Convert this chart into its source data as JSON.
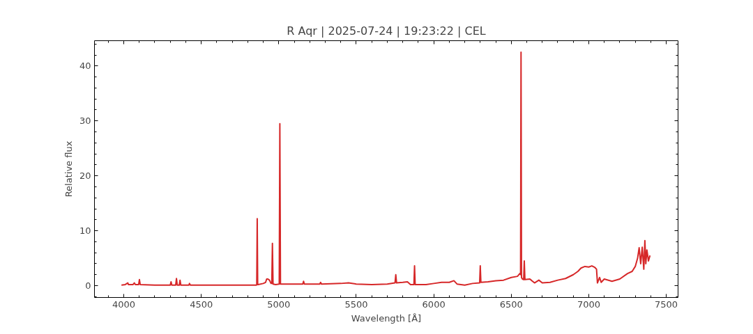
{
  "chart_data": {
    "type": "line",
    "title": "R Aqr | 2025-07-24 | 19:23:22 | CEL",
    "xlabel": "Wavelength [Å]",
    "ylabel": "Relative flux",
    "xlim": [
      3811,
      7576
    ],
    "ylim": [
      -2.15,
      44.6
    ],
    "xticks": [
      4000,
      4500,
      5000,
      5500,
      6000,
      6500,
      7000,
      7500
    ],
    "yticks": [
      0,
      10,
      20,
      30,
      40
    ],
    "grid": false,
    "series": [
      {
        "color": "#d62728",
        "x": [
          3985,
          4010,
          4026,
          4030,
          4060,
          4068,
          4075,
          4096,
          4101,
          4106,
          4200,
          4300,
          4305,
          4310,
          4335,
          4340,
          4345,
          4358,
          4363,
          4368,
          4420,
          4424,
          4430,
          4600,
          4800,
          4855,
          4858,
          4861,
          4864,
          4867,
          4900,
          4915,
          4922,
          4930,
          4940,
          4950,
          4955,
          4959,
          4963,
          4980,
          5003,
          5007,
          5011,
          5030,
          5100,
          5155,
          5160,
          5165,
          5265,
          5270,
          5275,
          5400,
          5450,
          5500,
          5600,
          5700,
          5750,
          5755,
          5760,
          5800,
          5830,
          5850,
          5872,
          5876,
          5880,
          5950,
          6000,
          6050,
          6100,
          6130,
          6150,
          6200,
          6250,
          6296,
          6300,
          6304,
          6350,
          6400,
          6450,
          6500,
          6540,
          6555,
          6560,
          6563,
          6566,
          6572,
          6580,
          6584,
          6588,
          6620,
          6650,
          6678,
          6700,
          6750,
          6800,
          6850,
          6900,
          6930,
          6950,
          6975,
          7000,
          7020,
          7040,
          7050,
          7056,
          7070,
          7080,
          7100,
          7150,
          7200,
          7250,
          7280,
          7300,
          7315,
          7325,
          7335,
          7345,
          7355,
          7362,
          7368,
          7375,
          7385,
          7395
        ],
        "values": [
          0.1,
          0.2,
          0.5,
          0.2,
          0.2,
          0.5,
          0.2,
          0.2,
          1.1,
          0.2,
          0.1,
          0.1,
          0.7,
          0.1,
          0.1,
          1.3,
          0.1,
          0.1,
          1.0,
          0.1,
          0.1,
          0.4,
          0.1,
          0.1,
          0.1,
          0.1,
          0.2,
          12.2,
          0.2,
          0.2,
          0.4,
          0.6,
          1.2,
          1.2,
          1.0,
          0.4,
          0.4,
          7.7,
          0.3,
          0.2,
          0.3,
          29.5,
          0.3,
          0.3,
          0.3,
          0.3,
          0.8,
          0.3,
          0.3,
          0.6,
          0.3,
          0.4,
          0.5,
          0.3,
          0.2,
          0.3,
          0.5,
          2.0,
          0.5,
          0.6,
          0.7,
          0.2,
          0.2,
          3.6,
          0.2,
          0.2,
          0.4,
          0.6,
          0.6,
          0.9,
          0.3,
          0.1,
          0.4,
          0.5,
          3.6,
          0.6,
          0.7,
          0.9,
          1.0,
          1.5,
          1.7,
          2.2,
          2.0,
          42.5,
          1.5,
          1.2,
          1.1,
          4.5,
          1.1,
          1.2,
          0.5,
          1.0,
          0.5,
          0.6,
          1.0,
          1.3,
          2.0,
          2.6,
          3.2,
          3.5,
          3.4,
          3.6,
          3.3,
          3.0,
          0.5,
          1.5,
          0.6,
          1.2,
          0.8,
          1.2,
          2.2,
          2.6,
          3.5,
          5.0,
          6.9,
          4.0,
          7.0,
          3.0,
          8.2,
          4.0,
          6.5,
          4.5,
          5.5
        ]
      }
    ]
  }
}
